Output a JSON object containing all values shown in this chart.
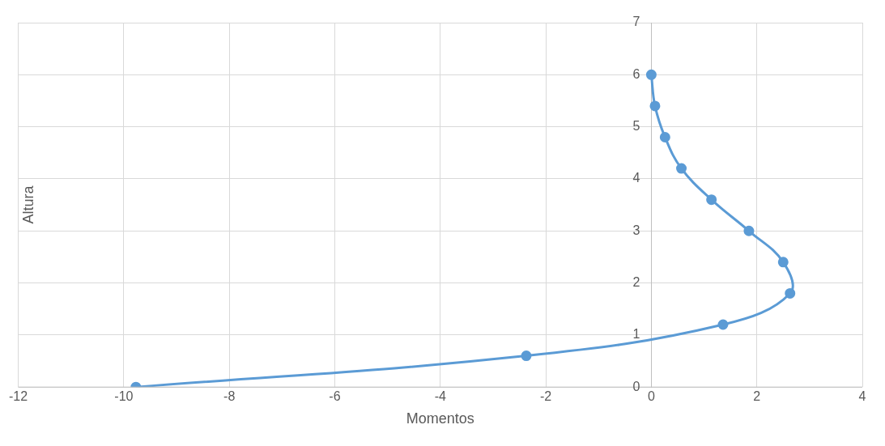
{
  "chart_data": {
    "type": "line",
    "xlabel": "Momentos",
    "ylabel": "Altura",
    "x": [
      -9.77,
      -2.37,
      1.36,
      2.63,
      2.5,
      1.85,
      1.14,
      0.57,
      0.26,
      0.07,
      0
    ],
    "series": [
      {
        "color": "#5b9bd5",
        "values": [
          0,
          0.6,
          1.2,
          1.8,
          2.4,
          3.0,
          3.6,
          4.2,
          4.8,
          5.4,
          6.0
        ]
      }
    ],
    "xlim": [
      -12,
      4
    ],
    "xticks": [
      -12,
      -10,
      -8,
      -6,
      -4,
      -2,
      0,
      2,
      4
    ],
    "ylim": [
      0,
      7
    ],
    "yticks": [
      0,
      1,
      2,
      3,
      4,
      5,
      6,
      7
    ],
    "grid": true,
    "legend": false,
    "marker": "circle",
    "line_style": "solid"
  }
}
